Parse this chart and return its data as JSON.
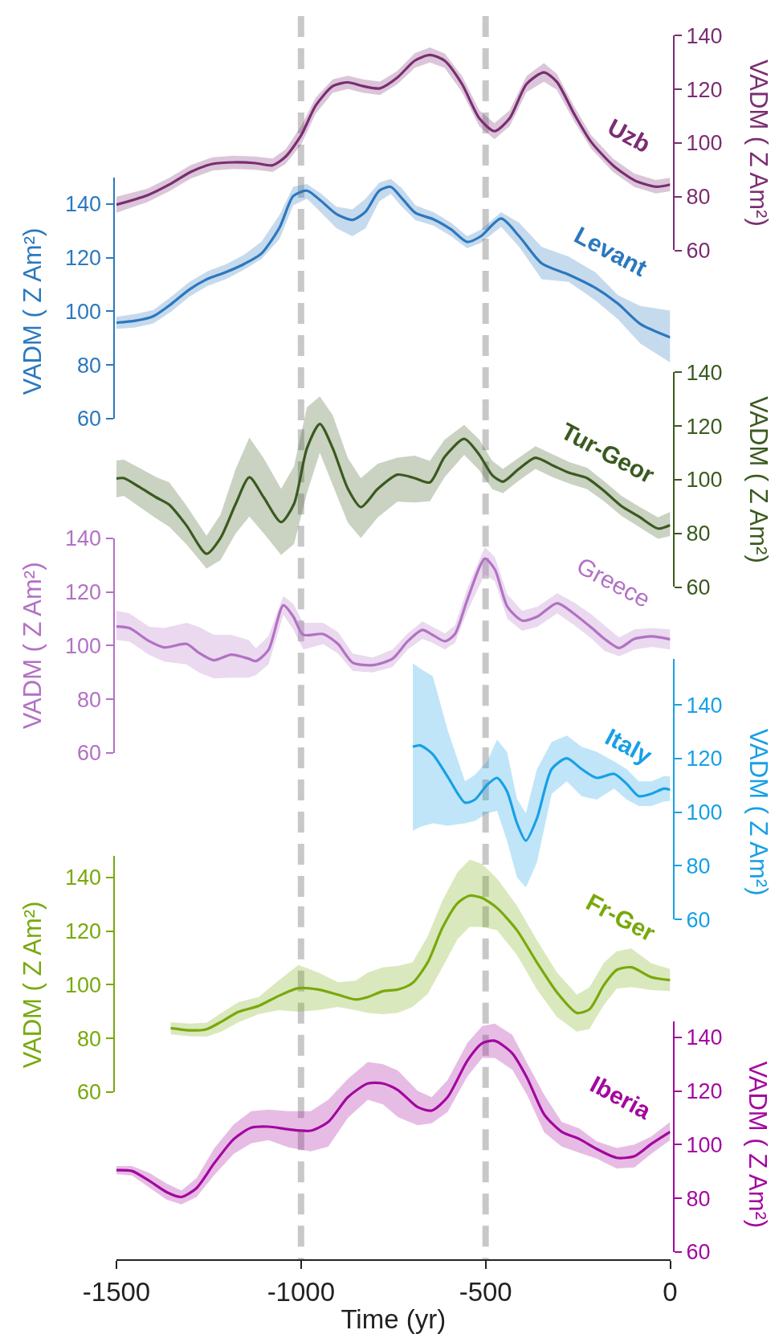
{
  "chart_data": [
    {
      "type": "line",
      "xlim": [
        -1500,
        0
      ],
      "ylim": [
        60,
        140
      ],
      "yticks": [
        60,
        80,
        100,
        120,
        140
      ],
      "ylabel": "VADM ( Z Am²)",
      "tick_labels": "y",
      "ref_lines": [
        {
          "axis": "x",
          "value": -1000,
          "color": "#c8c8c8",
          "line_style": "dashed"
        },
        {
          "axis": "x",
          "value": -500,
          "color": "#c8c8c8",
          "line_style": "dashed"
        }
      ],
      "series": [
        {
          "name": "Uzb",
          "color": "#7b2d72",
          "x": [
            -1500,
            -1416,
            -1357,
            -1298,
            -1240,
            -1182,
            -1123,
            -1077,
            -1042,
            -1000,
            -960,
            -914,
            -873,
            -832,
            -786,
            -739,
            -692,
            -651,
            -611,
            -564,
            -517,
            -476,
            -435,
            -389,
            -342,
            -307,
            -260,
            -214,
            -155,
            -97,
            -39,
            0
          ],
          "values": [
            77.0,
            80.5,
            84.5,
            89.3,
            92.2,
            92.8,
            92.5,
            91.7,
            94.9,
            102.8,
            114.0,
            121.2,
            122.6,
            121.2,
            120.4,
            124.4,
            130.7,
            132.8,
            130.7,
            122.0,
            109.2,
            104.4,
            109.2,
            122.0,
            126.3,
            122.8,
            110.8,
            100.4,
            91.7,
            86.1,
            83.7,
            84.5
          ],
          "lower": [
            74.0,
            78.0,
            82.0,
            86.8,
            89.7,
            90.3,
            90.0,
            89.2,
            92.2,
            99.3,
            111.0,
            118.7,
            120.1,
            118.7,
            117.9,
            121.9,
            128.0,
            130.0,
            128.0,
            119.0,
            106.2,
            101.4,
            106.2,
            119.0,
            122.8,
            119.8,
            108.0,
            97.9,
            89.2,
            83.6,
            81.2,
            82.0
          ],
          "upper": [
            80.0,
            83.0,
            87.0,
            91.8,
            94.7,
            95.3,
            95.0,
            94.2,
            97.6,
            106.3,
            117.0,
            123.7,
            125.1,
            123.7,
            122.9,
            126.9,
            133.5,
            135.6,
            133.4,
            125.0,
            112.2,
            107.4,
            112.2,
            125.0,
            129.8,
            125.8,
            113.6,
            102.9,
            94.2,
            88.6,
            86.2,
            87.0
          ]
        }
      ]
    },
    {
      "type": "line",
      "xlim": [
        -1500,
        0
      ],
      "ylim": [
        60,
        150
      ],
      "yticks": [
        60,
        80,
        100,
        120,
        140
      ],
      "ylabel": "VADM ( Z Am²)",
      "tick_labels": "y",
      "ref_lines": [
        {
          "axis": "x",
          "value": -1000,
          "color": "#c8c8c8",
          "line_style": "dashed"
        },
        {
          "axis": "x",
          "value": -500,
          "color": "#c8c8c8",
          "line_style": "dashed"
        }
      ],
      "series": [
        {
          "name": "Levant",
          "color": "#2b78be",
          "x": [
            -1500,
            -1449,
            -1400,
            -1351,
            -1302,
            -1253,
            -1204,
            -1155,
            -1107,
            -1058,
            -1021,
            -984,
            -947,
            -904,
            -861,
            -825,
            -788,
            -757,
            -727,
            -690,
            -641,
            -593,
            -550,
            -513,
            -458,
            -409,
            -348,
            -275,
            -202,
            -141,
            -81,
            0
          ],
          "values": [
            95.8,
            96.5,
            98.2,
            102.8,
            108.2,
            112.1,
            114.6,
            117.6,
            121.6,
            131.3,
            143.0,
            145.0,
            141.3,
            136.3,
            134.1,
            137.2,
            145.0,
            146.4,
            142.2,
            136.7,
            134.3,
            130.5,
            125.9,
            128.0,
            134.6,
            128.0,
            117.9,
            113.7,
            108.7,
            102.8,
            95.3,
            90.3
          ],
          "lower": [
            93.5,
            94.0,
            95.5,
            100.0,
            105.5,
            109.5,
            112.0,
            115.5,
            119.5,
            127.0,
            139.5,
            142.0,
            137.0,
            131.0,
            128.0,
            131.0,
            141.0,
            143.8,
            139.0,
            134.0,
            132.0,
            128.0,
            123.5,
            125.5,
            131.5,
            124.0,
            112.0,
            111.0,
            104.0,
            97.0,
            88.0,
            81.0
          ],
          "upper": [
            98.0,
            99.0,
            100.5,
            105.5,
            111.0,
            115.0,
            117.5,
            121.0,
            126.0,
            136.0,
            146.5,
            147.5,
            144.0,
            139.0,
            138.0,
            142.0,
            148.0,
            149.4,
            146.0,
            139.5,
            137.0,
            133.0,
            128.0,
            130.5,
            137.0,
            133.0,
            124.0,
            120.4,
            114.5,
            106.0,
            102.0,
            100.3
          ]
        }
      ]
    },
    {
      "type": "line",
      "xlim": [
        -1500,
        0
      ],
      "ylim": [
        60,
        140
      ],
      "yticks": [
        60,
        80,
        100,
        120,
        140
      ],
      "ylabel": "VADM ( Z Am²)",
      "tick_labels": "y",
      "ref_lines": [
        {
          "axis": "x",
          "value": -1000,
          "color": "#c8c8c8",
          "line_style": "dashed"
        },
        {
          "axis": "x",
          "value": -500,
          "color": "#c8c8c8",
          "line_style": "dashed"
        }
      ],
      "series": [
        {
          "name": "Tur-Geor",
          "color": "#3a5a1f",
          "x": [
            -1500,
            -1480,
            -1439,
            -1392,
            -1357,
            -1311,
            -1256,
            -1218,
            -1177,
            -1140,
            -1101,
            -1054,
            -1019,
            -984,
            -949,
            -914,
            -873,
            -838,
            -792,
            -739,
            -692,
            -651,
            -611,
            -558,
            -517,
            -482,
            -453,
            -412,
            -365,
            -319,
            -272,
            -225,
            -179,
            -132,
            -85,
            -33,
            0
          ],
          "values": [
            100.5,
            100.6,
            97.4,
            93.4,
            90.7,
            83.1,
            72.4,
            78.3,
            91.0,
            100.9,
            93.4,
            84.2,
            91.0,
            111.7,
            120.8,
            111.7,
            96.6,
            89.8,
            96.6,
            101.9,
            100.6,
            99.0,
            108.5,
            115.2,
            109.3,
            101.7,
            99.3,
            103.8,
            108.2,
            105.4,
            102.5,
            100.6,
            95.8,
            90.2,
            86.3,
            81.8,
            83.1
          ],
          "lower": [
            93.4,
            94.0,
            90.0,
            85.5,
            82.5,
            76.0,
            66.9,
            70.0,
            80.0,
            86.3,
            80.0,
            72.0,
            76.0,
            95.0,
            110.1,
            98.0,
            84.0,
            78.3,
            86.0,
            91.8,
            91.5,
            92.0,
            101.0,
            109.3,
            103.5,
            96.5,
            95.0,
            99.5,
            104.0,
            101.0,
            98.5,
            96.5,
            92.0,
            86.5,
            82.5,
            78.0,
            79.0
          ],
          "upper": [
            107.2,
            107.5,
            104.5,
            101.0,
            99.0,
            90.5,
            79.1,
            87.0,
            104.0,
            115.7,
            108.0,
            96.6,
            105.0,
            127.0,
            131.1,
            124.0,
            108.0,
            100.6,
            106.0,
            108.2,
            109.0,
            107.0,
            115.0,
            120.4,
            115.0,
            107.0,
            104.0,
            108.0,
            112.5,
            109.5,
            106.5,
            104.5,
            99.5,
            94.0,
            90.0,
            86.0,
            88.0
          ]
        }
      ]
    },
    {
      "type": "line",
      "xlim": [
        -1500,
        0
      ],
      "ylim": [
        60,
        140
      ],
      "yticks": [
        60,
        80,
        100,
        120,
        140
      ],
      "ylabel": "VADM ( Z Am²)",
      "tick_labels": "y",
      "ref_lines": [
        {
          "axis": "x",
          "value": -1000,
          "color": "#c8c8c8",
          "line_style": "dashed"
        },
        {
          "axis": "x",
          "value": -500,
          "color": "#c8c8c8",
          "line_style": "dashed"
        }
      ],
      "series": [
        {
          "name": "Greece",
          "color": "#b271c4",
          "x": [
            -1500,
            -1465,
            -1411,
            -1371,
            -1310,
            -1277,
            -1236,
            -1189,
            -1142,
            -1122,
            -1088,
            -1048,
            -1021,
            -994,
            -940,
            -900,
            -860,
            -806,
            -752,
            -711,
            -671,
            -644,
            -610,
            -583,
            -549,
            -502,
            -475,
            -441,
            -401,
            -360,
            -306,
            -259,
            -212,
            -178,
            -138,
            -97,
            -50,
            0
          ],
          "values": [
            107.1,
            106.5,
            101.6,
            99.3,
            100.6,
            97.3,
            94.5,
            96.6,
            95.1,
            94.2,
            98.4,
            115.0,
            110.8,
            104.0,
            104.3,
            100.6,
            93.6,
            92.7,
            95.1,
            101.6,
            105.8,
            104.0,
            101.6,
            104.3,
            117.3,
            132.4,
            128.4,
            114.5,
            109.3,
            110.8,
            115.8,
            111.7,
            106.5,
            102.5,
            99.1,
            102.5,
            103.4,
            102.3
          ],
          "lower": [
            102.0,
            101.5,
            96.5,
            94.0,
            93.0,
            90.0,
            87.7,
            88.0,
            88.0,
            89.0,
            93.0,
            111.5,
            106.0,
            98.5,
            100.5,
            97.0,
            90.5,
            90.0,
            92.0,
            98.5,
            102.5,
            101.0,
            98.5,
            101.0,
            113.0,
            126.5,
            124.0,
            110.0,
            105.5,
            107.0,
            112.0,
            107.5,
            102.5,
            98.0,
            96.0,
            98.5,
            99.5,
            98.5
          ],
          "upper": [
            113.0,
            112.0,
            107.0,
            106.5,
            108.5,
            107.0,
            104.0,
            104.0,
            102.0,
            99.0,
            103.5,
            118.5,
            115.5,
            108.5,
            108.5,
            105.0,
            97.0,
            95.5,
            98.5,
            104.5,
            109.0,
            107.0,
            104.5,
            107.5,
            121.5,
            136.7,
            133.0,
            119.0,
            113.0,
            114.5,
            119.5,
            116.0,
            111.5,
            107.5,
            103.0,
            106.0,
            106.5,
            106.0
          ]
        }
      ]
    },
    {
      "type": "line",
      "xlim": [
        -1500,
        0
      ],
      "ylim": [
        60,
        157
      ],
      "yticks": [
        60,
        80,
        100,
        120,
        140
      ],
      "ylabel": "VADM ( Z Am²)",
      "tick_labels": "y",
      "ref_lines": [
        {
          "axis": "x",
          "value": -1000,
          "color": "#c8c8c8",
          "line_style": "dashed"
        },
        {
          "axis": "x",
          "value": -500,
          "color": "#c8c8c8",
          "line_style": "dashed"
        }
      ],
      "series": [
        {
          "name": "Italy",
          "color": "#17a0e6",
          "x": [
            -697,
            -677,
            -643,
            -603,
            -556,
            -529,
            -496,
            -469,
            -442,
            -415,
            -391,
            -361,
            -321,
            -280,
            -240,
            -199,
            -152,
            -118,
            -85,
            -51,
            -17,
            0
          ],
          "values": [
            124.4,
            124.9,
            121.6,
            113.3,
            103.6,
            104.7,
            110.2,
            112.8,
            107.8,
            95.9,
            89.4,
            97.7,
            116.1,
            120.1,
            116.1,
            112.8,
            114.3,
            110.6,
            106.0,
            106.9,
            108.8,
            108.4
          ],
          "lower": [
            93.1,
            94.5,
            95.9,
            95.0,
            95.9,
            96.8,
            99.6,
            100.5,
            89.4,
            75.7,
            72.0,
            81.2,
            106.9,
            111.5,
            106.0,
            104.7,
            108.8,
            104.7,
            102.3,
            102.3,
            104.0,
            104.2
          ],
          "upper": [
            155.5,
            153.5,
            150.7,
            130.8,
            111.5,
            113.9,
            118.9,
            127.0,
            122.5,
            105.0,
            99.6,
            116.0,
            126.2,
            128.6,
            124.4,
            122.5,
            118.9,
            116.1,
            111.5,
            111.5,
            113.5,
            113.3
          ]
        }
      ]
    },
    {
      "type": "line",
      "xlim": [
        -1500,
        0
      ],
      "ylim": [
        60,
        148
      ],
      "yticks": [
        60,
        80,
        100,
        120,
        140
      ],
      "ylabel": "VADM ( Z Am²)",
      "tick_labels": "y",
      "ref_lines": [
        {
          "axis": "x",
          "value": -1000,
          "color": "#c8c8c8",
          "line_style": "dashed"
        },
        {
          "axis": "x",
          "value": -500,
          "color": "#c8c8c8",
          "line_style": "dashed"
        }
      ],
      "series": [
        {
          "name": "Fr-Ger",
          "color": "#78a90c",
          "x": [
            -1353,
            -1303,
            -1256,
            -1216,
            -1169,
            -1115,
            -1061,
            -1007,
            -953,
            -900,
            -852,
            -819,
            -778,
            -738,
            -698,
            -657,
            -617,
            -576,
            -543,
            -509,
            -469,
            -415,
            -361,
            -307,
            -253,
            -219,
            -179,
            -145,
            -105,
            -51,
            0
          ],
          "values": [
            83.8,
            83.0,
            83.4,
            86.2,
            89.9,
            92.1,
            95.8,
            98.7,
            98.2,
            96.3,
            94.5,
            95.4,
            97.6,
            98.2,
            100.6,
            108.3,
            121.2,
            130.4,
            133.2,
            132.3,
            128.6,
            120.3,
            108.3,
            97.2,
            89.5,
            90.8,
            100.0,
            105.5,
            106.5,
            102.8,
            101.7
          ],
          "lower": [
            81.5,
            80.8,
            80.6,
            82.5,
            86.0,
            89.0,
            90.5,
            89.9,
            90.5,
            91.7,
            90.5,
            89.5,
            89.0,
            89.5,
            91.7,
            96.5,
            106.5,
            117.0,
            121.6,
            121.5,
            120.3,
            111.1,
            98.2,
            88.0,
            82.5,
            83.5,
            92.6,
            98.5,
            99.1,
            98.0,
            97.6
          ],
          "upper": [
            86.0,
            85.5,
            85.8,
            89.5,
            93.5,
            95.4,
            101.5,
            107.4,
            104.5,
            100.9,
            101.5,
            104.5,
            106.5,
            107.0,
            108.3,
            118.0,
            131.3,
            142.0,
            146.6,
            145.0,
            139.6,
            129.5,
            116.6,
            104.6,
            96.3,
            99.0,
            108.3,
            112.5,
            113.5,
            108.0,
            105.9
          ]
        }
      ]
    },
    {
      "type": "line",
      "xlabel": "Time (yr)",
      "xlim": [
        -1500,
        0
      ],
      "xticks": [
        -1500,
        -1000,
        -500,
        0
      ],
      "ylim": [
        60,
        146
      ],
      "yticks": [
        60,
        80,
        100,
        120,
        140
      ],
      "ylabel": "VADM ( Z Am²)",
      "ref_lines": [
        {
          "axis": "x",
          "value": -1000,
          "color": "#c8c8c8",
          "line_style": "dashed"
        },
        {
          "axis": "x",
          "value": -500,
          "color": "#c8c8c8",
          "line_style": "dashed"
        }
      ],
      "series": [
        {
          "name": "Iberia",
          "color": "#a3079f",
          "x": [
            -1500,
            -1458,
            -1411,
            -1364,
            -1324,
            -1283,
            -1236,
            -1182,
            -1135,
            -1088,
            -1034,
            -974,
            -926,
            -873,
            -819,
            -778,
            -738,
            -684,
            -646,
            -603,
            -549,
            -509,
            -475,
            -428,
            -388,
            -341,
            -294,
            -246,
            -199,
            -145,
            -97,
            -51,
            0
          ],
          "values": [
            90.5,
            90.2,
            86.5,
            82.3,
            80.5,
            83.8,
            92.9,
            102.1,
            106.3,
            106.7,
            105.7,
            105.2,
            108.5,
            117.7,
            122.8,
            122.8,
            120.4,
            114.0,
            112.7,
            117.7,
            131.4,
            137.8,
            138.7,
            134.1,
            125.0,
            111.2,
            104.8,
            102.1,
            98.4,
            95.1,
            95.7,
            100.3,
            104.8
          ],
          "lower": [
            89.0,
            88.5,
            84.0,
            79.5,
            77.7,
            80.5,
            88.5,
            96.6,
            100.5,
            101.7,
            99.0,
            97.5,
            99.3,
            110.0,
            116.7,
            115.0,
            110.3,
            107.2,
            108.0,
            112.2,
            125.5,
            132.3,
            132.3,
            128.0,
            118.6,
            104.5,
            99.3,
            97.0,
            94.8,
            91.1,
            91.5,
            96.6,
            101.7
          ],
          "upper": [
            92.0,
            92.0,
            89.5,
            85.5,
            82.9,
            87.5,
            98.5,
            107.6,
            112.5,
            113.1,
            112.5,
            112.5,
            116.7,
            124.5,
            130.8,
            130.0,
            127.7,
            120.0,
            117.7,
            124.1,
            138.0,
            144.2,
            145.1,
            141.0,
            130.5,
            118.5,
            108.5,
            106.0,
            101.2,
            98.8,
            100.0,
            103.0,
            108.5
          ]
        }
      ]
    }
  ]
}
